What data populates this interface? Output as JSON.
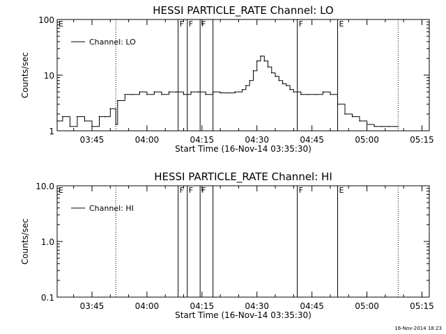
{
  "footer": {
    "timestamp": "16-Nov-2014 18:23"
  },
  "chart_data": [
    {
      "type": "line",
      "title": "HESSI PARTICLE_RATE Channel: LO",
      "xlabel": "Start Time (16-Nov-14 03:35:30)",
      "ylabel": "Counts/sec",
      "y_scale": "log",
      "ylim": [
        1,
        100
      ],
      "y_ticks": [
        "1",
        "10",
        "100"
      ],
      "x_ticks": [
        "03:45",
        "04:00",
        "04:15",
        "04:30",
        "04:45",
        "05:00",
        "05:15"
      ],
      "xlim": [
        "03:35:30",
        "05:17:00"
      ],
      "grid": false,
      "legend": {
        "position": "top-left",
        "entries": [
          "Channel: LO"
        ]
      },
      "markers": [
        {
          "time": "03:35:30",
          "label": "E",
          "style": "solid"
        },
        {
          "time": "03:51:30",
          "label": "",
          "style": "dotted"
        },
        {
          "time": "04:08:30",
          "label": "F",
          "style": "solid"
        },
        {
          "time": "04:11:00",
          "label": "F",
          "style": "solid"
        },
        {
          "time": "04:14:30",
          "label": "F",
          "style": "solid"
        },
        {
          "time": "04:18:00",
          "label": "",
          "style": "solid"
        },
        {
          "time": "04:41:00",
          "label": "F",
          "style": "solid"
        },
        {
          "time": "04:52:00",
          "label": "E",
          "style": "solid"
        },
        {
          "time": "05:08:30",
          "label": "",
          "style": "dotted"
        }
      ],
      "series": [
        {
          "name": "Channel: LO",
          "x": [
            "03:35:30",
            "03:37:00",
            "03:39:00",
            "03:41:00",
            "03:43:00",
            "03:45:00",
            "03:47:00",
            "03:48:30",
            "03:50:00",
            "03:51:30",
            "03:52:00",
            "03:54:00",
            "03:56:00",
            "03:58:00",
            "04:00:00",
            "04:02:00",
            "04:04:00",
            "04:06:00",
            "04:08:00",
            "04:10:00",
            "04:12:00",
            "04:14:00",
            "04:16:00",
            "04:18:00",
            "04:20:00",
            "04:22:00",
            "04:24:00",
            "04:26:00",
            "04:27:00",
            "04:28:00",
            "04:29:00",
            "04:30:00",
            "04:31:00",
            "04:32:00",
            "04:33:00",
            "04:34:00",
            "04:35:00",
            "04:36:00",
            "04:37:00",
            "04:38:00",
            "04:39:00",
            "04:40:00",
            "04:42:00",
            "04:44:00",
            "04:46:00",
            "04:48:00",
            "04:50:00",
            "04:52:00",
            "04:54:00",
            "04:56:00",
            "04:58:00",
            "05:00:00",
            "05:02:00",
            "05:04:00",
            "05:06:00",
            "05:08:30"
          ],
          "values": [
            1.5,
            1.8,
            1.2,
            1.8,
            1.5,
            1.2,
            1.8,
            1.8,
            2.5,
            1.3,
            3.5,
            4.5,
            4.5,
            5.0,
            4.5,
            5.0,
            4.5,
            5.0,
            5.0,
            4.5,
            5.0,
            5.0,
            4.5,
            5.0,
            4.8,
            4.8,
            5.0,
            5.5,
            6.5,
            8.0,
            12.0,
            18.0,
            22.0,
            18.0,
            14.0,
            11.0,
            9.5,
            8.0,
            7.0,
            6.5,
            5.5,
            5.0,
            4.5,
            4.5,
            4.5,
            5.0,
            4.5,
            3.0,
            2.0,
            1.8,
            1.5,
            1.3,
            1.2,
            1.2,
            1.2,
            1.2
          ]
        }
      ]
    },
    {
      "type": "line",
      "title": "HESSI PARTICLE_RATE Channel: HI",
      "xlabel": "Start Time (16-Nov-14 03:35:30)",
      "ylabel": "Counts/sec",
      "y_scale": "log",
      "ylim": [
        0.1,
        10.0
      ],
      "y_ticks": [
        "0.1",
        "1.0",
        "10.0"
      ],
      "x_ticks": [
        "03:45",
        "04:00",
        "04:15",
        "04:30",
        "04:45",
        "05:00",
        "05:15"
      ],
      "xlim": [
        "03:35:30",
        "05:17:00"
      ],
      "grid": false,
      "legend": {
        "position": "top-left",
        "entries": [
          "Channel: HI"
        ]
      },
      "markers": [
        {
          "time": "03:35:30",
          "label": "E",
          "style": "solid"
        },
        {
          "time": "03:51:30",
          "label": "",
          "style": "dotted"
        },
        {
          "time": "04:08:30",
          "label": "F",
          "style": "solid"
        },
        {
          "time": "04:11:00",
          "label": "F",
          "style": "solid"
        },
        {
          "time": "04:14:30",
          "label": "F",
          "style": "solid"
        },
        {
          "time": "04:18:00",
          "label": "",
          "style": "solid"
        },
        {
          "time": "04:41:00",
          "label": "F",
          "style": "solid"
        },
        {
          "time": "04:52:00",
          "label": "E",
          "style": "solid"
        },
        {
          "time": "05:08:30",
          "label": "",
          "style": "dotted"
        }
      ],
      "series": [
        {
          "name": "Channel: HI",
          "x": [],
          "values": []
        }
      ]
    }
  ]
}
